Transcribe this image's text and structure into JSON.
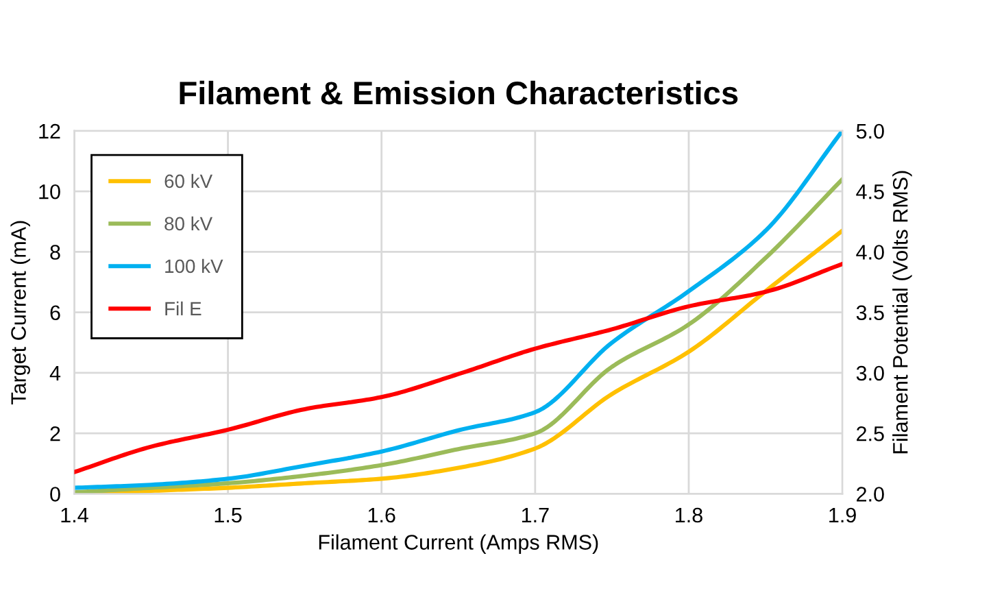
{
  "chart_data": {
    "type": "line",
    "title": "Filament & Emission Characteristics",
    "xlabel": "Filament Current (Amps RMS)",
    "ylabel": "Target Current (mA)",
    "y2label": "Filament Potential (Volts RMS)",
    "x": [
      1.4,
      1.45,
      1.5,
      1.55,
      1.6,
      1.65,
      1.7,
      1.75,
      1.8,
      1.85,
      1.9
    ],
    "series": [
      {
        "name": "60 kV",
        "color": "#ffc000",
        "values": [
          0,
          0.1,
          0.2,
          0.35,
          0.5,
          0.86,
          1.5,
          3.3,
          4.7,
          6.7,
          8.7
        ]
      },
      {
        "name": "80 kV",
        "color": "#9bbb59",
        "values": [
          0.05,
          0.2,
          0.35,
          0.6,
          0.95,
          1.48,
          2.0,
          4.2,
          5.6,
          7.8,
          10.4
        ]
      },
      {
        "name": "100 kV",
        "color": "#00b0f0",
        "values": [
          0.2,
          0.3,
          0.5,
          0.93,
          1.4,
          2.1,
          2.7,
          5.0,
          6.7,
          8.7,
          12.0
        ]
      },
      {
        "name": "Fil E",
        "color": "#ff0000",
        "axis": "y2",
        "values": [
          2.18,
          2.39,
          2.53,
          2.7,
          2.8,
          2.99,
          3.2,
          3.36,
          3.55,
          3.67,
          3.9
        ]
      }
    ],
    "xlim": [
      1.4,
      1.9
    ],
    "xticks": [
      1.4,
      1.5,
      1.6,
      1.7,
      1.8,
      1.9
    ],
    "ylim": [
      0,
      12
    ],
    "yticks": [
      0,
      2,
      4,
      6,
      8,
      10,
      12
    ],
    "y2lim": [
      2.0,
      5.0
    ],
    "y2ticks": [
      {
        "value": 2.0,
        "label": "2.0"
      },
      {
        "value": 2.5,
        "label": "2.5"
      },
      {
        "value": 3.0,
        "label": "3.0"
      },
      {
        "value": 3.5,
        "label": "3.5"
      },
      {
        "value": 4.0,
        "label": "4.0"
      },
      {
        "value": 4.5,
        "label": "4.5"
      },
      {
        "value": 5.0,
        "label": "5.0"
      }
    ],
    "grid": true,
    "legend": "top left",
    "marker": "none",
    "line_style": "solid"
  }
}
